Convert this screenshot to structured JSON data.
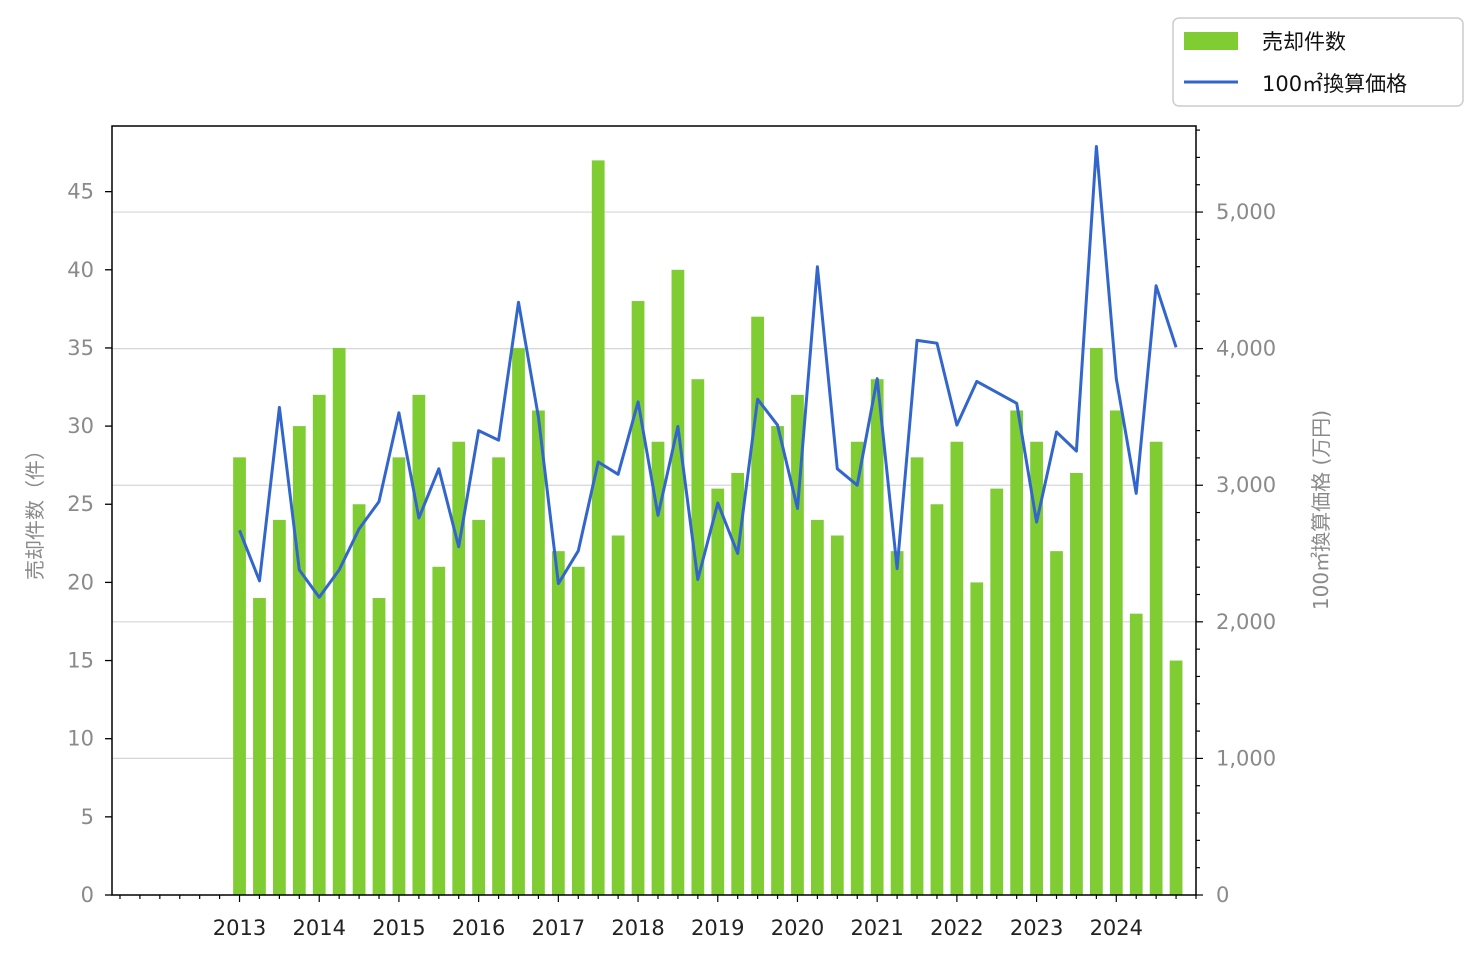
{
  "chart_data": {
    "type": "bar",
    "x": [
      2013.0,
      2013.25,
      2013.5,
      2013.75,
      2014.0,
      2014.25,
      2014.5,
      2014.75,
      2015.0,
      2015.25,
      2015.5,
      2015.75,
      2016.0,
      2016.25,
      2016.5,
      2016.75,
      2017.0,
      2017.25,
      2017.5,
      2017.75,
      2018.0,
      2018.25,
      2018.5,
      2018.75,
      2019.0,
      2019.25,
      2019.5,
      2019.75,
      2020.0,
      2020.25,
      2020.5,
      2020.75,
      2021.0,
      2021.25,
      2021.5,
      2021.75,
      2022.0,
      2022.25,
      2022.5,
      2022.75,
      2023.0,
      2023.25,
      2023.5,
      2023.75,
      2024.0,
      2024.25,
      2024.5,
      2024.75
    ],
    "xticks": [
      "2013",
      "2014",
      "2015",
      "2016",
      "2017",
      "2018",
      "2019",
      "2020",
      "2021",
      "2022",
      "2023",
      "2024"
    ],
    "xlim": [
      2011.4,
      2025.0
    ],
    "series": [
      {
        "name": "売却件数",
        "type": "bar",
        "axis": "left",
        "color": "#80cc33",
        "values": [
          28,
          19,
          24,
          30,
          32,
          35,
          25,
          19,
          28,
          32,
          21,
          29,
          24,
          28,
          35,
          31,
          22,
          21,
          47,
          23,
          38,
          29,
          40,
          33,
          26,
          27,
          37,
          30,
          32,
          24,
          23,
          29,
          33,
          22,
          28,
          25,
          29,
          20,
          26,
          31,
          29,
          22,
          27,
          35,
          31,
          18,
          29,
          15
        ]
      },
      {
        "name": "100㎡換算価格",
        "type": "line",
        "axis": "right",
        "color": "#3366cc",
        "values": [
          2670,
          2300,
          3570,
          2380,
          2180,
          2380,
          2680,
          2880,
          3530,
          2760,
          3120,
          2550,
          3400,
          3330,
          4340,
          3500,
          2280,
          2520,
          3170,
          3080,
          3610,
          2780,
          3430,
          2310,
          2870,
          2500,
          3630,
          3440,
          2830,
          4600,
          3120,
          3000,
          3780,
          2390,
          4060,
          4040,
          3440,
          3760,
          3680,
          3600,
          2730,
          3390,
          3250,
          5480,
          3780,
          2940,
          4460,
          4010
        ]
      }
    ],
    "yleft": {
      "label": "売却件数（件）",
      "ylim": [
        0,
        49.2
      ],
      "ticks": [
        "0",
        "5",
        "10",
        "15",
        "20",
        "25",
        "30",
        "35",
        "40",
        "45"
      ],
      "tick_values": [
        0,
        5,
        10,
        15,
        20,
        25,
        30,
        35,
        40,
        45
      ]
    },
    "yright": {
      "label": "100㎡換算価格 (万円)",
      "ylim": [
        0,
        5630
      ],
      "ticks": [
        "0",
        "1,000",
        "2,000",
        "3,000",
        "4,000",
        "5,000"
      ],
      "tick_values": [
        0,
        1000,
        2000,
        3000,
        4000,
        5000
      ]
    },
    "grid": "horizontal (right axis)",
    "legend_position": "top-right, outside plot"
  }
}
